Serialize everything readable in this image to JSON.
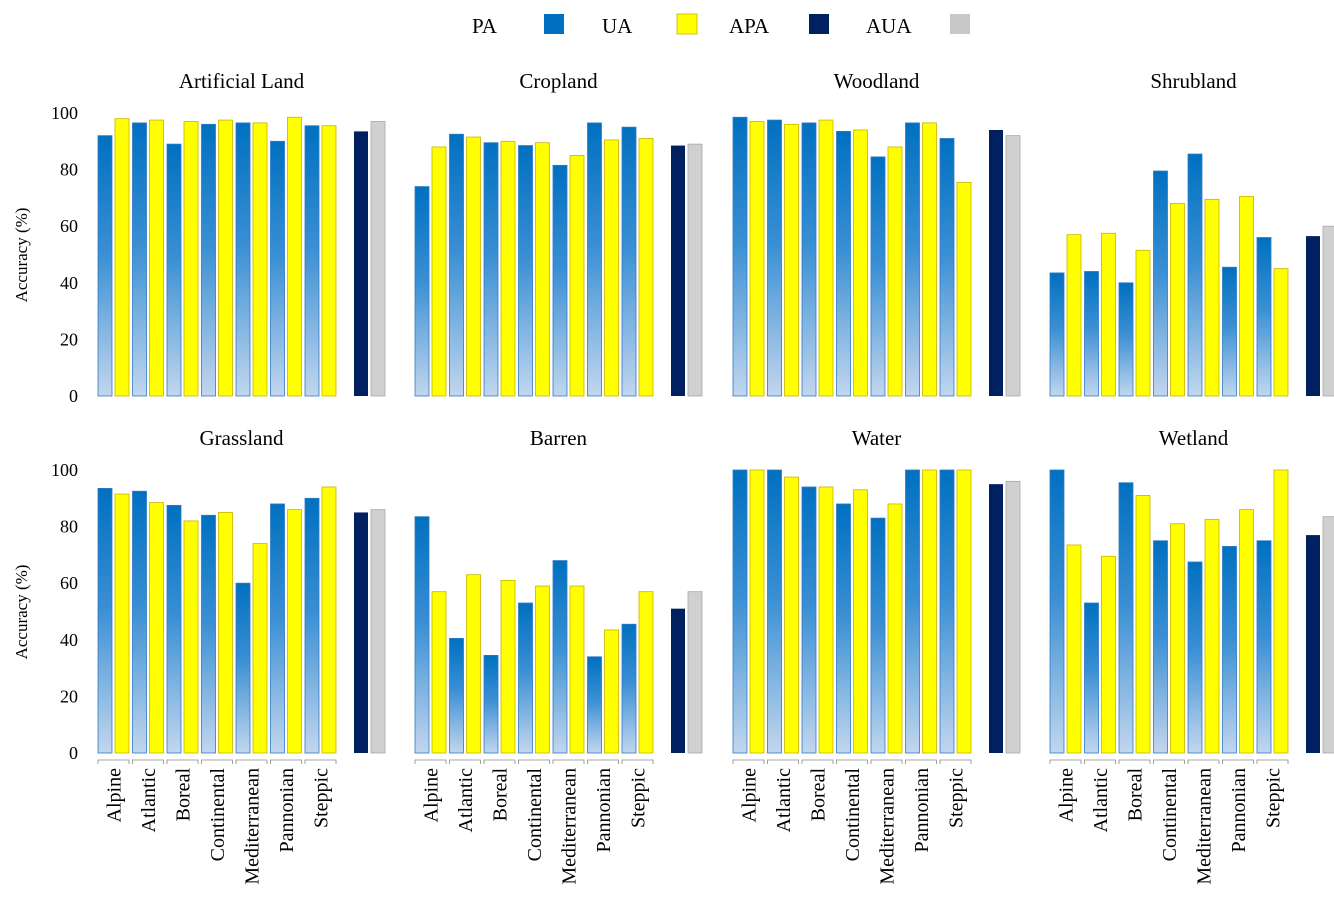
{
  "legend": [
    {
      "label": "PA",
      "color": "#0070C0"
    },
    {
      "label": "UA",
      "color": "#FFFF00"
    },
    {
      "label": "APA",
      "color": "#002060"
    },
    {
      "label": "AUA",
      "color": "#C8C8C8"
    }
  ],
  "chart_data": {
    "type": "bar",
    "ylabel": "Accuracy (%)",
    "ylim": [
      0,
      100
    ],
    "yticks": [
      0,
      20,
      40,
      60,
      80,
      100
    ],
    "grid": false,
    "legend_position": "top-center",
    "categories": [
      "Alpine",
      "Atlantic",
      "Boreal",
      "Continental",
      "Mediterranean",
      "Pannonian",
      "Steppic"
    ],
    "panels": [
      {
        "title": "Artificial Land",
        "PA": [
          92,
          96.5,
          89,
          96,
          96.5,
          90,
          95.5
        ],
        "UA": [
          98,
          97.5,
          97,
          97.5,
          96.5,
          98.5,
          95.5
        ],
        "APA": 93.5,
        "AUA": 97
      },
      {
        "title": "Cropland",
        "PA": [
          74,
          92.5,
          89.5,
          88.5,
          81.5,
          96.5,
          95
        ],
        "UA": [
          88,
          91.5,
          90,
          89.5,
          85,
          90.5,
          91
        ],
        "APA": 88.5,
        "AUA": 89
      },
      {
        "title": "Woodland",
        "PA": [
          98.5,
          97.5,
          96.5,
          93.5,
          84.5,
          96.5,
          91
        ],
        "UA": [
          97,
          96,
          97.5,
          94,
          88,
          96.5,
          75.5
        ],
        "APA": 94,
        "AUA": 92
      },
      {
        "title": "Shrubland",
        "PA": [
          43.5,
          44,
          40,
          79.5,
          85.5,
          45.5,
          56
        ],
        "UA": [
          57,
          57.5,
          51.5,
          68,
          69.5,
          70.5,
          45
        ],
        "APA": 56.5,
        "AUA": 60
      },
      {
        "title": "Grassland",
        "PA": [
          93.5,
          92.5,
          87.5,
          84,
          60,
          88,
          90
        ],
        "UA": [
          91.5,
          88.5,
          82,
          85,
          74,
          86,
          94
        ],
        "APA": 85,
        "AUA": 86
      },
      {
        "title": "Barren",
        "PA": [
          83.5,
          40.5,
          34.5,
          53,
          68,
          34,
          45.5
        ],
        "UA": [
          57,
          63,
          61,
          59,
          59,
          43.5,
          57
        ],
        "APA": 51,
        "AUA": 57
      },
      {
        "title": "Water",
        "PA": [
          100,
          100,
          94,
          88,
          83,
          100,
          100
        ],
        "UA": [
          100,
          97.5,
          94,
          93,
          88,
          100,
          100
        ],
        "APA": 95,
        "AUA": 96
      },
      {
        "title": "Wetland",
        "PA": [
          100,
          53,
          95.5,
          75,
          67.5,
          73,
          75
        ],
        "UA": [
          73.5,
          69.5,
          91,
          81,
          82.5,
          86,
          100
        ],
        "APA": 77,
        "AUA": 83.5
      }
    ]
  }
}
